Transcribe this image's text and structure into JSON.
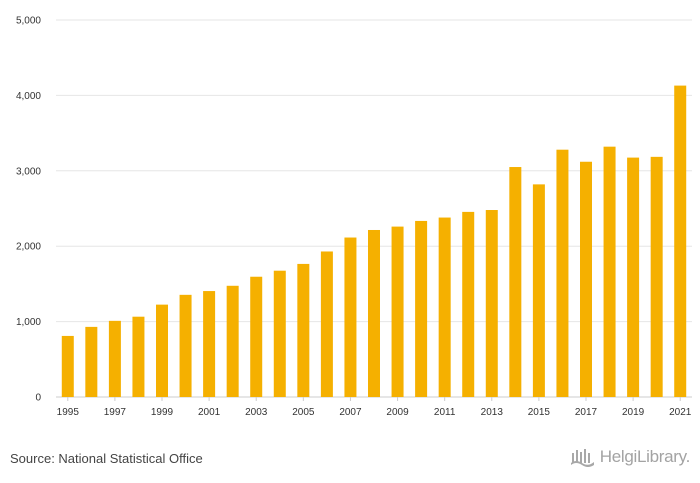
{
  "chart_data": {
    "type": "bar",
    "title": "",
    "xlabel": "",
    "ylabel": "",
    "categories": [
      "1995",
      "1996",
      "1997",
      "1998",
      "1999",
      "2000",
      "2001",
      "2002",
      "2003",
      "2004",
      "2005",
      "2006",
      "2007",
      "2008",
      "2009",
      "2010",
      "2011",
      "2012",
      "2013",
      "2014",
      "2015",
      "2016",
      "2017",
      "2018",
      "2019",
      "2020",
      "2021"
    ],
    "values": [
      810,
      930,
      1010,
      1065,
      1225,
      1355,
      1405,
      1475,
      1595,
      1675,
      1765,
      1930,
      2115,
      2215,
      2260,
      2335,
      2380,
      2455,
      2480,
      3050,
      2820,
      3280,
      3120,
      3320,
      3175,
      3185,
      4130
    ],
    "x_tick_labels": [
      "1995",
      "1997",
      "1999",
      "2001",
      "2003",
      "2005",
      "2007",
      "2009",
      "2011",
      "2013",
      "2015",
      "2017",
      "2019",
      "2021"
    ],
    "y_ticks": [
      0,
      1000,
      2000,
      3000,
      4000,
      5000
    ],
    "y_tick_labels": [
      "0",
      "1,000",
      "2,000",
      "3,000",
      "4,000",
      "5,000"
    ],
    "ylim": [
      0,
      5000
    ],
    "grid": true,
    "bar_color": "#F5B000",
    "grid_color": "#e6e6e6"
  },
  "footer": {
    "source": "Source: National Statistical Office",
    "logo_text": "HelgiLibrary."
  },
  "icons": {
    "logo": "helgi-library-logo-icon"
  }
}
